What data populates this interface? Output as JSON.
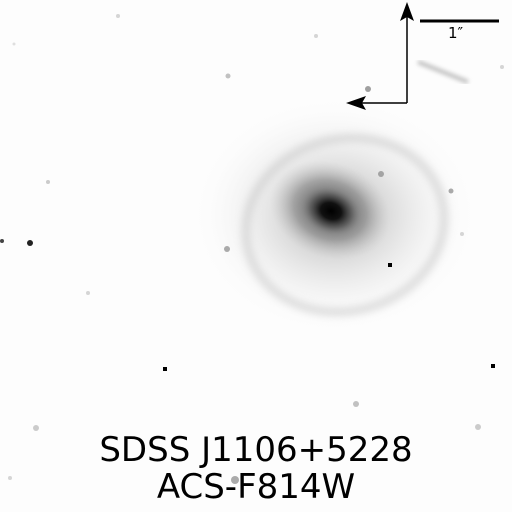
{
  "image": {
    "target_name": "SDSS J1106+5228",
    "filter_name": "ACS-F814W",
    "scale_bar_label": "1″",
    "compass": {
      "north_arrow": "arrow-up-icon",
      "east_arrow": "arrow-left-icon"
    },
    "colors": {
      "background": "#fdfdfd",
      "ink": "#000000"
    }
  }
}
